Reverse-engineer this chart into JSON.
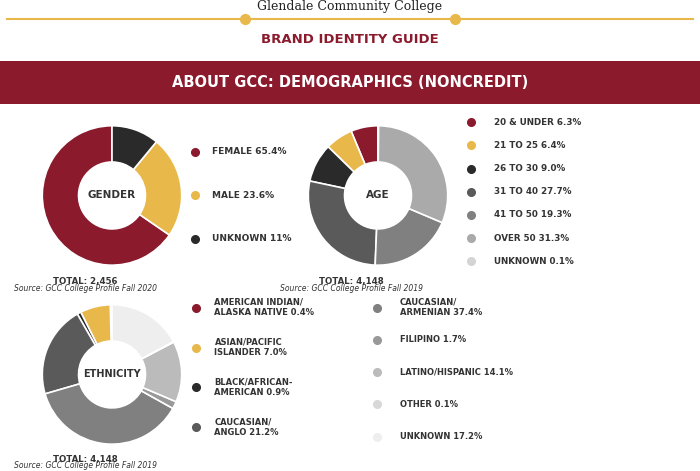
{
  "header_title": "Glendale Community College",
  "header_subtitle": "BRAND IDENTITY GUIDE",
  "section_title": "ABOUT GCC: DEMOGRAPHICS (NONCREDIT)",
  "section_bg": "#8B1A2D",
  "header_line_color": "#E8B84B",
  "header_dot_color": "#E8B84B",
  "gender": {
    "label": "GENDER",
    "sizes": [
      65.4,
      23.6,
      11.0
    ],
    "colors": [
      "#8B1A2D",
      "#E8B84B",
      "#2A2A2A"
    ],
    "legend_labels": [
      "FEMALE 65.4%",
      "MALE 23.6%",
      "UNKNOWN 11%"
    ],
    "legend_colors": [
      "#8B1A2D",
      "#E8B84B",
      "#2A2A2A"
    ],
    "total": "TOTAL: 2,456",
    "source": "Source: GCC College Profile Fall 2020"
  },
  "age": {
    "label": "AGE",
    "sizes": [
      6.3,
      6.4,
      9.0,
      27.7,
      19.3,
      31.3,
      0.1
    ],
    "colors": [
      "#8B1A2D",
      "#E8B84B",
      "#2A2A2A",
      "#5A5A5A",
      "#808080",
      "#AAAAAA",
      "#D4D4D4"
    ],
    "legend_labels": [
      "20 & UNDER 6.3%",
      "21 TO 25 6.4%",
      "26 TO 30 9.0%",
      "31 TO 40 27.7%",
      "41 TO 50 19.3%",
      "OVER 50 31.3%",
      "UNKNOWN 0.1%"
    ],
    "legend_colors": [
      "#8B1A2D",
      "#E8B84B",
      "#2A2A2A",
      "#5A5A5A",
      "#808080",
      "#AAAAAA",
      "#D4D4D4"
    ],
    "total": "TOTAL: 4,148",
    "source": "Source: GCC College Profile Fall 2019"
  },
  "ethnicity": {
    "label": "ETHNICITY",
    "sizes": [
      0.4,
      7.0,
      0.9,
      21.2,
      37.4,
      1.7,
      14.1,
      0.1,
      17.2
    ],
    "colors": [
      "#8B1A2D",
      "#E8B84B",
      "#2A2A2A",
      "#5A5A5A",
      "#808080",
      "#999999",
      "#BBBBBB",
      "#D8D8D8",
      "#EEEEEE"
    ],
    "legend_labels_left": [
      "AMERICAN INDIAN/\nALASKA NATIVE 0.4%",
      "ASIAN/PACIFIC\nISLANDER 7.0%",
      "BLACK/AFRICAN-\nAMERICAN 0.9%",
      "CAUCASIAN/\nANGLO 21.2%"
    ],
    "legend_labels_right": [
      "CAUCASIAN/\nARMENIAN 37.4%",
      "FILIPINO 1.7%",
      "LATINO/HISPANIC 14.1%",
      "OTHER 0.1%",
      "UNKNOWN 17.2%"
    ],
    "legend_colors_left": [
      "#8B1A2D",
      "#E8B84B",
      "#2A2A2A",
      "#5A5A5A"
    ],
    "legend_colors_right": [
      "#808080",
      "#999999",
      "#BBBBBB",
      "#D8D8D8",
      "#EEEEEE"
    ],
    "total": "TOTAL: 4,148",
    "source": "Source: GCC College Profile Fall 2019"
  }
}
